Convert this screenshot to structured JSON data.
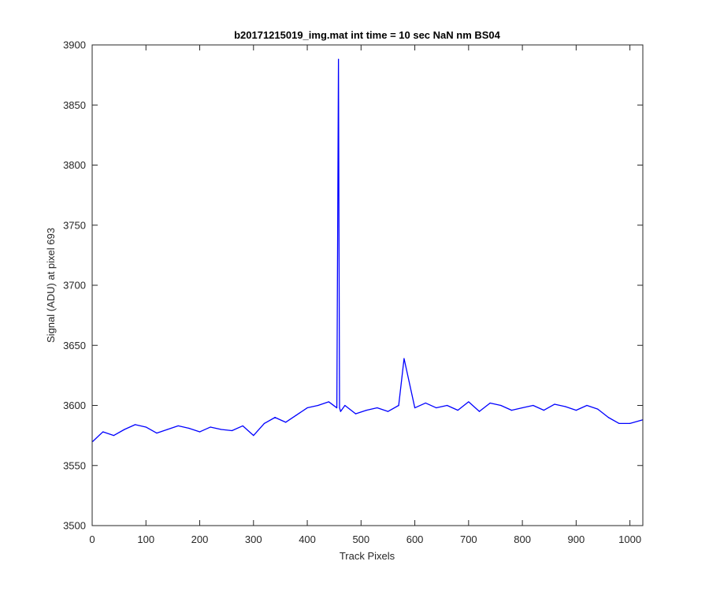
{
  "chart_data": {
    "type": "line",
    "title": "b20171215019_img.mat int time = 10 sec  NaN nm BS04",
    "xlabel": "Track Pixels",
    "ylabel": "Signal (ADU) at pixel 693",
    "xlim": [
      0,
      1024
    ],
    "ylim": [
      3500,
      3900
    ],
    "xticks": [
      0,
      100,
      200,
      300,
      400,
      500,
      600,
      700,
      800,
      900,
      1000
    ],
    "yticks": [
      3500,
      3550,
      3600,
      3650,
      3700,
      3750,
      3800,
      3850,
      3900
    ],
    "grid": false,
    "line_color": "#0000ff",
    "series": [
      {
        "x": [
          1,
          20,
          40,
          60,
          80,
          100,
          120,
          140,
          160,
          180,
          200,
          220,
          240,
          260,
          280,
          300,
          320,
          340,
          360,
          380,
          400,
          420,
          440,
          455,
          458,
          460,
          462,
          470,
          490,
          510,
          530,
          550,
          570,
          580,
          600,
          620,
          640,
          660,
          680,
          700,
          720,
          740,
          760,
          780,
          800,
          820,
          840,
          860,
          880,
          900,
          920,
          940,
          960,
          980,
          1000,
          1024
        ],
        "y": [
          3570,
          3578,
          3575,
          3580,
          3584,
          3582,
          3577,
          3580,
          3583,
          3581,
          3578,
          3582,
          3580,
          3579,
          3583,
          3575,
          3585,
          3590,
          3586,
          3592,
          3598,
          3600,
          3603,
          3598,
          3888,
          3598,
          3595,
          3600,
          3593,
          3596,
          3598,
          3595,
          3600,
          3639,
          3598,
          3602,
          3598,
          3600,
          3596,
          3603,
          3595,
          3602,
          3600,
          3596,
          3598,
          3600,
          3596,
          3601,
          3599,
          3596,
          3600,
          3597,
          3590,
          3585,
          3585,
          3588
        ]
      }
    ]
  }
}
